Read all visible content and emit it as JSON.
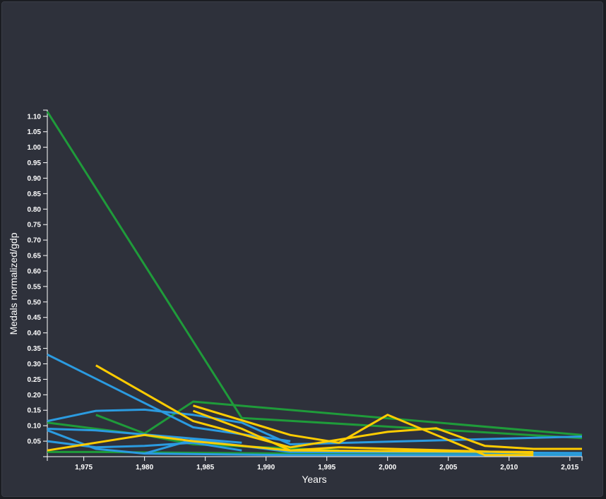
{
  "chart_data": {
    "type": "line",
    "title": "",
    "xlabel": "Years",
    "ylabel": "Medals normalized/gdp",
    "xlim": [
      1972,
      2016
    ],
    "ylim": [
      0,
      1.12
    ],
    "x_ticks": [
      1975,
      1980,
      1985,
      1990,
      1995,
      2000,
      2005,
      2010,
      2015
    ],
    "x_tick_labels": [
      "1,975",
      "1,980",
      "1,985",
      "1,990",
      "1,995",
      "2,000",
      "2,005",
      "2,010",
      "2,015"
    ],
    "y_ticks": [
      0.05,
      0.1,
      0.15,
      0.2,
      0.25,
      0.3,
      0.35,
      0.4,
      0.45,
      0.5,
      0.55,
      0.6,
      0.65,
      0.7,
      0.75,
      0.8,
      0.85,
      0.9,
      0.95,
      1.0,
      1.05,
      1.1
    ],
    "y_tick_labels": [
      "0.05",
      "0.10",
      "0.15",
      "0.20",
      "0.25",
      "0.30",
      "0.35",
      "0.40",
      "0.45",
      "0.50",
      "0.55",
      "0.60",
      "0.65",
      "0.70",
      "0.75",
      "0.80",
      "0.85",
      "0.90",
      "0.95",
      "1.00",
      "1.05",
      "1.10"
    ],
    "grid": false,
    "colors": {
      "green": "#1f9b3a",
      "blue": "#2b9be0",
      "yellow": "#ffcc00"
    },
    "series": [
      {
        "color": "#1f9b3a",
        "x": [
          1972,
          1988,
          2016
        ],
        "y": [
          1.115,
          0.125,
          0.06
        ]
      },
      {
        "color": "#1f9b3a",
        "x": [
          1976,
          1980,
          1984,
          2016
        ],
        "y": [
          0.135,
          0.075,
          0.178,
          0.07
        ]
      },
      {
        "color": "#1f9b3a",
        "x": [
          1972,
          1980,
          1984,
          1996
        ],
        "y": [
          0.11,
          0.07,
          0.04,
          0.02
        ]
      },
      {
        "color": "#1f9b3a",
        "x": [
          1972,
          1976,
          1992,
          2016
        ],
        "y": [
          0.015,
          0.015,
          0.01,
          0.008
        ]
      },
      {
        "color": "#2b9be0",
        "x": [
          1972,
          1984,
          1992
        ],
        "y": [
          0.33,
          0.095,
          0.05
        ]
      },
      {
        "color": "#2b9be0",
        "x": [
          1972,
          1976,
          1980,
          1984,
          1988,
          1992,
          2016
        ],
        "y": [
          0.115,
          0.148,
          0.152,
          0.135,
          0.11,
          0.04,
          0.065
        ]
      },
      {
        "color": "#2b9be0",
        "x": [
          1972,
          1976,
          1988
        ],
        "y": [
          0.09,
          0.085,
          0.045
        ]
      },
      {
        "color": "#2b9be0",
        "x": [
          1972,
          1976,
          1980,
          1984,
          1988
        ],
        "y": [
          0.05,
          0.03,
          0.035,
          0.045,
          0.02
        ]
      },
      {
        "color": "#2b9be0",
        "x": [
          1972,
          1976,
          1980,
          1984,
          1992,
          2016
        ],
        "y": [
          0.085,
          0.025,
          0.01,
          0.055,
          0.015,
          0.012
        ]
      },
      {
        "color": "#2b9be0",
        "x": [
          1980,
          1992,
          2016
        ],
        "y": [
          0.01,
          0.005,
          0.005
        ]
      },
      {
        "color": "#ffcc00",
        "x": [
          1976,
          1984,
          1992,
          1996,
          2000,
          2004,
          2008,
          2012,
          2016
        ],
        "y": [
          0.295,
          0.115,
          0.03,
          0.055,
          0.08,
          0.092,
          0.035,
          0.025,
          0.025
        ]
      },
      {
        "color": "#ffcc00",
        "x": [
          1984,
          1992,
          1996,
          2000,
          2008,
          2012
        ],
        "y": [
          0.165,
          0.07,
          0.045,
          0.135,
          0.005,
          0.005
        ]
      },
      {
        "color": "#ffcc00",
        "x": [
          1984,
          1988,
          1992,
          1996,
          2012
        ],
        "y": [
          0.148,
          0.09,
          0.02,
          0.03,
          0.012
        ]
      },
      {
        "color": "#ffcc00",
        "x": [
          1972,
          1980,
          1984,
          1992,
          2012
        ],
        "y": [
          0.02,
          0.07,
          0.05,
          0.02,
          0.015
        ]
      }
    ]
  }
}
